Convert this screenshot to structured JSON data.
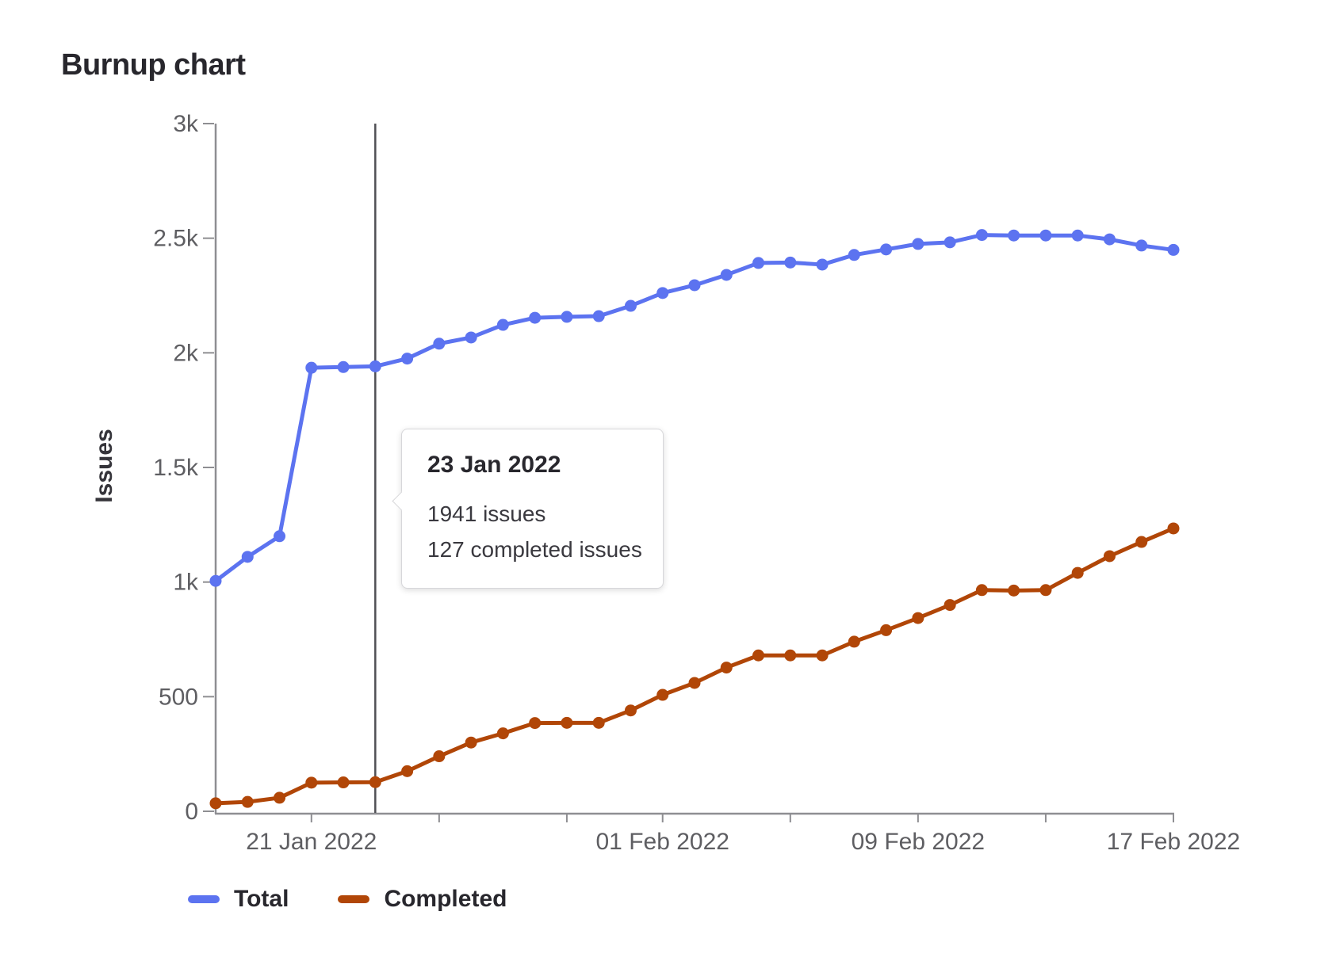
{
  "page": {
    "title": "Burnup chart"
  },
  "chart_data": {
    "type": "line",
    "title": "Burnup chart",
    "xlabel": "",
    "ylabel": "Issues",
    "ylim": [
      0,
      3000
    ],
    "grid": false,
    "legend_position": "bottom",
    "axis_color": "#8e8e92",
    "tick_label_color": "#5e5e62",
    "cursor_color": "#505055",
    "cursor_index": 5,
    "x": [
      "18 Jan 2022",
      "19 Jan 2022",
      "20 Jan 2022",
      "21 Jan 2022",
      "22 Jan 2022",
      "23 Jan 2022",
      "24 Jan 2022",
      "25 Jan 2022",
      "26 Jan 2022",
      "27 Jan 2022",
      "28 Jan 2022",
      "29 Jan 2022",
      "30 Jan 2022",
      "31 Jan 2022",
      "01 Feb 2022",
      "02 Feb 2022",
      "03 Feb 2022",
      "04 Feb 2022",
      "05 Feb 2022",
      "06 Feb 2022",
      "07 Feb 2022",
      "08 Feb 2022",
      "09 Feb 2022",
      "10 Feb 2022",
      "11 Feb 2022",
      "12 Feb 2022",
      "13 Feb 2022",
      "14 Feb 2022",
      "15 Feb 2022",
      "16 Feb 2022",
      "17 Feb 2022"
    ],
    "series": [
      {
        "name": "Total",
        "color": "#5c73f0",
        "values": [
          1005,
          1110,
          1200,
          1935,
          1938,
          1941,
          1975,
          2040,
          2067,
          2122,
          2153,
          2157,
          2160,
          2205,
          2261,
          2295,
          2340,
          2392,
          2394,
          2385,
          2427,
          2451,
          2475,
          2482,
          2514,
          2512,
          2512,
          2512,
          2495,
          2468,
          2449
        ]
      },
      {
        "name": "Completed",
        "color": "#b14607",
        "values": [
          35,
          41,
          59,
          125,
          126,
          127,
          175,
          240,
          300,
          340,
          385,
          386,
          386,
          440,
          508,
          560,
          627,
          680,
          680,
          680,
          740,
          790,
          843,
          900,
          965,
          963,
          965,
          1040,
          1113,
          1175,
          1234
        ]
      }
    ],
    "y_ticks": {
      "values": [
        0,
        500,
        1000,
        1500,
        2000,
        2500,
        3000
      ],
      "labels": [
        "0",
        "500",
        "1k",
        "1.5k",
        "2k",
        "2.5k",
        "3k"
      ]
    },
    "x_ticks": [
      {
        "index": 3,
        "label": "21 Jan 2022"
      },
      {
        "index": 7,
        "label": ""
      },
      {
        "index": 11,
        "label": ""
      },
      {
        "index": 14,
        "label": "01 Feb 2022"
      },
      {
        "index": 18,
        "label": ""
      },
      {
        "index": 22,
        "label": "09 Feb 2022"
      },
      {
        "index": 26,
        "label": ""
      },
      {
        "index": 30,
        "label": "17 Feb 2022"
      }
    ]
  },
  "tooltip": {
    "title": "23 Jan 2022",
    "lines": [
      "1941 issues",
      "127 completed issues"
    ]
  }
}
